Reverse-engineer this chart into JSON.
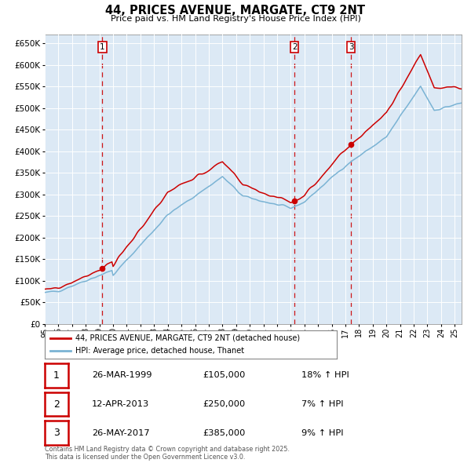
{
  "title": "44, PRICES AVENUE, MARGATE, CT9 2NT",
  "subtitle": "Price paid vs. HM Land Registry's House Price Index (HPI)",
  "legend_line1": "44, PRICES AVENUE, MARGATE, CT9 2NT (detached house)",
  "legend_line2": "HPI: Average price, detached house, Thanet",
  "footer": "Contains HM Land Registry data © Crown copyright and database right 2025.\nThis data is licensed under the Open Government Licence v3.0.",
  "ylim": [
    0,
    670000
  ],
  "yticks": [
    0,
    50000,
    100000,
    150000,
    200000,
    250000,
    300000,
    350000,
    400000,
    450000,
    500000,
    550000,
    600000,
    650000
  ],
  "sale_color": "#cc0000",
  "hpi_color": "#7ab3d4",
  "vline_color": "#cc0000",
  "transactions": [
    {
      "label": "1",
      "date": "26-MAR-1999",
      "price": 105000,
      "hpi_pct": "18%",
      "x_year": 1999.22
    },
    {
      "label": "2",
      "date": "12-APR-2013",
      "price": 250000,
      "hpi_pct": "7%",
      "x_year": 2013.28
    },
    {
      "label": "3",
      "date": "26-MAY-2017",
      "price": 385000,
      "hpi_pct": "9%",
      "x_year": 2017.4
    }
  ],
  "background_color": "#ffffff",
  "plot_bg_color": "#dce9f5",
  "grid_color": "#ffffff",
  "table_rows": [
    {
      "num": "1",
      "date": "26-MAR-1999",
      "price": "£105,000",
      "hpi": "18% ↑ HPI"
    },
    {
      "num": "2",
      "date": "12-APR-2013",
      "price": "£250,000",
      "hpi": "7% ↑ HPI"
    },
    {
      "num": "3",
      "date": "26-MAY-2017",
      "price": "£385,000",
      "hpi": "9% ↑ HPI"
    }
  ],
  "xlim_start": 1995.0,
  "xlim_end": 2025.5,
  "xtick_labels": [
    "95",
    "96",
    "97",
    "98",
    "99",
    "00",
    "01",
    "02",
    "03",
    "04",
    "05",
    "06",
    "07",
    "08",
    "09",
    "10",
    "11",
    "12",
    "13",
    "14",
    "15",
    "16",
    "17",
    "18",
    "19",
    "20",
    "21",
    "22",
    "23",
    "24",
    "25"
  ]
}
